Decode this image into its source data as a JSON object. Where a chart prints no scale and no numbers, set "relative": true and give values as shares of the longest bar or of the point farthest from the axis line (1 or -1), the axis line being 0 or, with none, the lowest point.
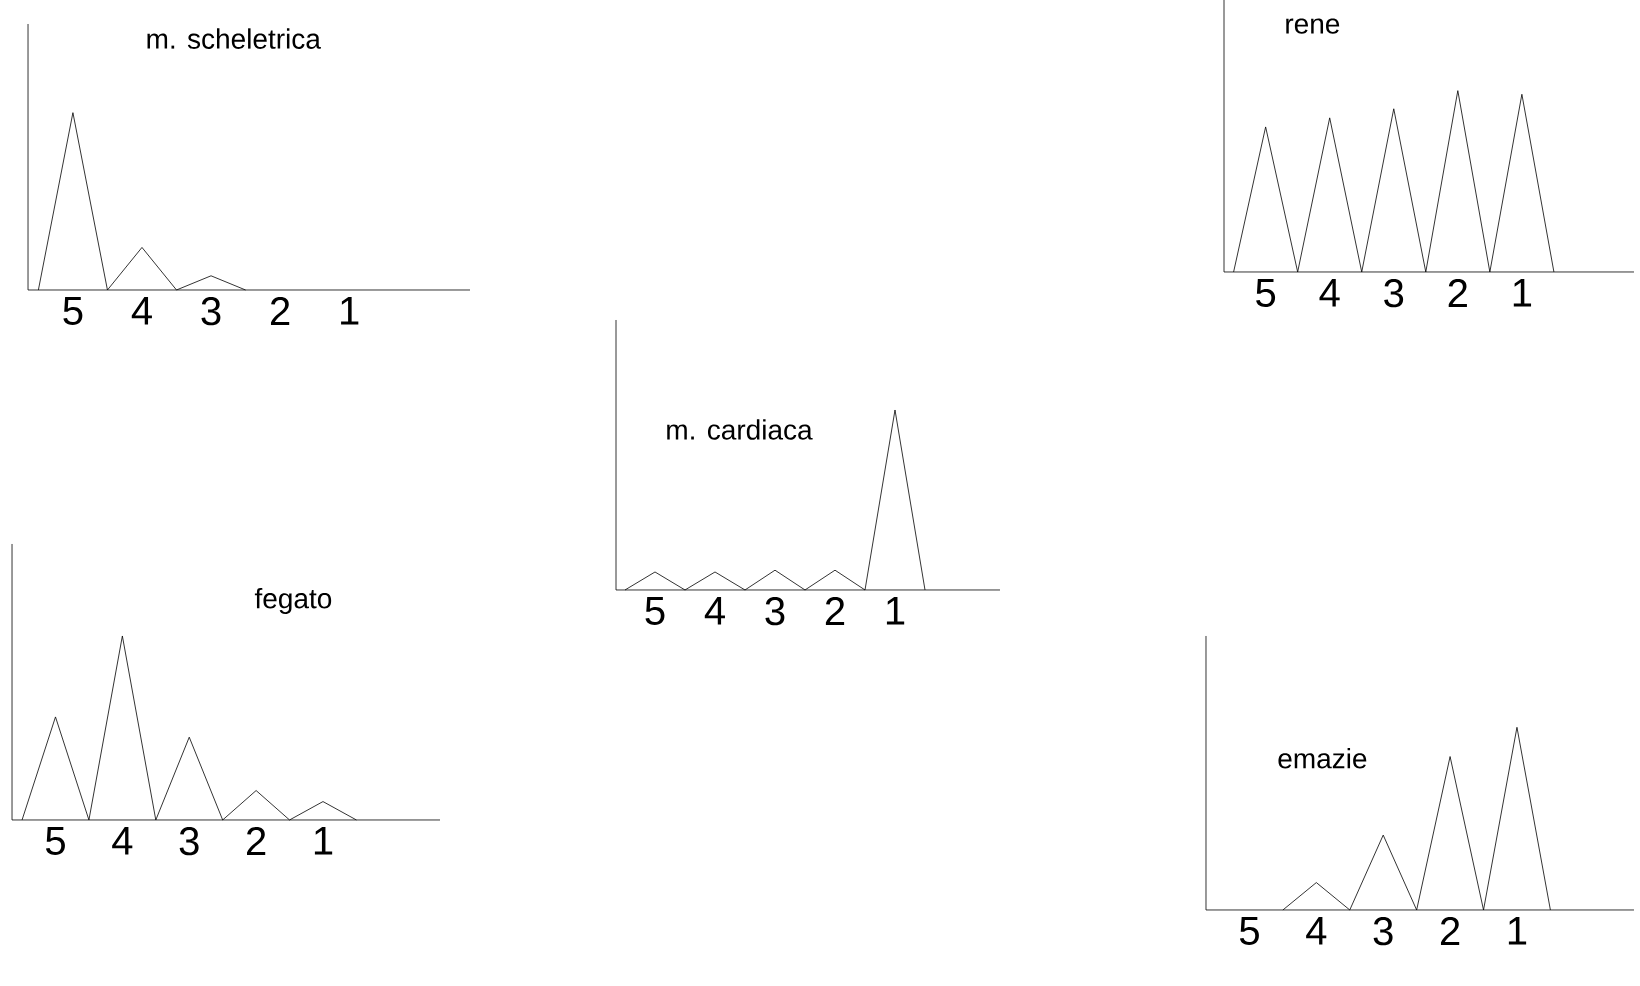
{
  "chart_data": [
    {
      "type": "line",
      "relative": true,
      "title": "m. scheletrica",
      "tick_labels": "x",
      "color": "#000000",
      "categories": [
        null,
        "5",
        null,
        "4",
        null,
        "3",
        null,
        "2",
        null,
        "1",
        null
      ],
      "values": [
        0,
        1,
        0,
        0.24,
        0,
        0.08,
        0,
        null,
        null,
        null,
        null
      ]
    },
    {
      "type": "line",
      "relative": true,
      "title": "rene",
      "tick_labels": "x",
      "color": "#000000",
      "categories": [
        null,
        "5",
        null,
        "4",
        null,
        "3",
        null,
        "2",
        null,
        "1",
        null
      ],
      "values": [
        0,
        0.8,
        0,
        0.85,
        0,
        0.9,
        0,
        1,
        0,
        0.98,
        0
      ]
    },
    {
      "type": "line",
      "relative": true,
      "title": "m. cardiaca",
      "tick_labels": "x",
      "color": "#000000",
      "categories": [
        null,
        "5",
        null,
        "4",
        null,
        "3",
        null,
        "2",
        null,
        "1",
        null
      ],
      "values": [
        0,
        0.1,
        0,
        0.1,
        0,
        0.11,
        0,
        0.11,
        0,
        1,
        0
      ]
    },
    {
      "type": "line",
      "relative": true,
      "title": "fegato",
      "tick_labels": "x",
      "color": "#000000",
      "categories": [
        null,
        "5",
        null,
        "4",
        null,
        "3",
        null,
        "2",
        null,
        "1",
        null
      ],
      "values": [
        0,
        0.56,
        0,
        1,
        0,
        0.45,
        0,
        0.16,
        0,
        0.1,
        0
      ]
    },
    {
      "type": "line",
      "relative": true,
      "title": "emazie",
      "tick_labels": "x",
      "color": "#000000",
      "categories": [
        null,
        "5",
        null,
        "4",
        null,
        "3",
        null,
        "2",
        null,
        "1",
        null
      ],
      "values": [
        null,
        null,
        0,
        0.15,
        0,
        0.41,
        0,
        0.84,
        0,
        1,
        0
      ]
    }
  ]
}
